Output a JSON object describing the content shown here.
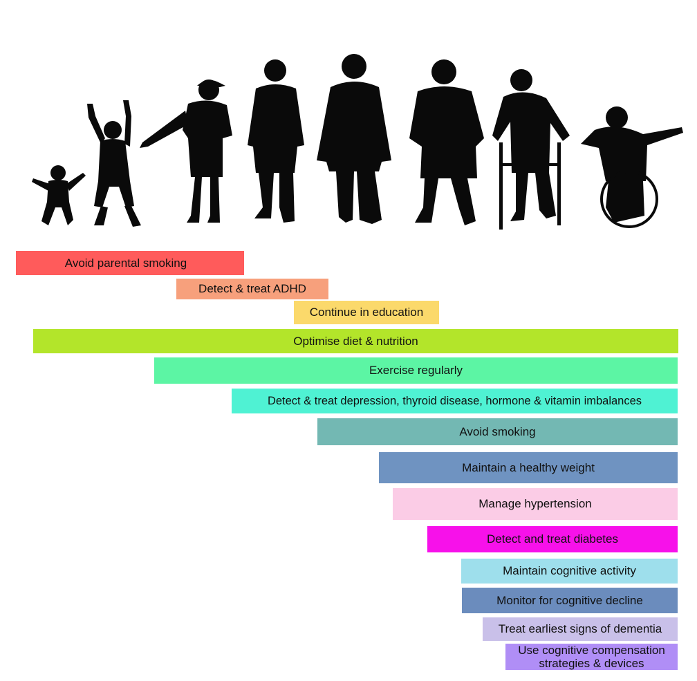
{
  "silhouettes": [
    {
      "icon": "toddler-silhouette-icon",
      "color": "#0a0a0a"
    },
    {
      "icon": "child-silhouette-icon",
      "color": "#0a0a0a"
    },
    {
      "icon": "teen-silhouette-icon",
      "color": "#0a0a0a"
    },
    {
      "icon": "young-adult-silhouette-icon",
      "color": "#0a0a0a"
    },
    {
      "icon": "adult-man-silhouette-icon",
      "color": "#0a0a0a"
    },
    {
      "icon": "middle-aged-silhouette-icon",
      "color": "#0a0a0a"
    },
    {
      "icon": "elderly-walker-silhouette-icon",
      "color": "#0a0a0a"
    },
    {
      "icon": "wheelchair-user-silhouette-icon",
      "color": "#0a0a0a"
    }
  ],
  "interventions": [
    {
      "label": "Avoid parental smoking",
      "color": "#ff5b5b"
    },
    {
      "label": "Detect & treat ADHD",
      "color": "#f7a07c"
    },
    {
      "label": "Continue in education",
      "color": "#fbd96b"
    },
    {
      "label": "Optimise diet & nutrition",
      "color": "#b3e52a"
    },
    {
      "label": "Exercise regularly",
      "color": "#5cf5a4"
    },
    {
      "label": "Detect & treat depression, thyroid disease, hormone & vitamin imbalances",
      "color": "#4ff2d3"
    },
    {
      "label": "Avoid smoking",
      "color": "#73b8b3"
    },
    {
      "label": "Maintain a healthy weight",
      "color": "#6f93c1"
    },
    {
      "label": "Manage hypertension",
      "color": "#fbcce6"
    },
    {
      "label": "Detect and treat diabetes",
      "color": "#f711ea"
    },
    {
      "label": "Maintain cognitive activity",
      "color": "#9edfec"
    },
    {
      "label": "Monitor for cognitive decline",
      "color": "#6b8cbd"
    },
    {
      "label": "Treat earliest signs of dementia",
      "color": "#c9c0e9"
    },
    {
      "label": "Use cognitive compensation strategies & devices",
      "color": "#b08ef6"
    }
  ]
}
